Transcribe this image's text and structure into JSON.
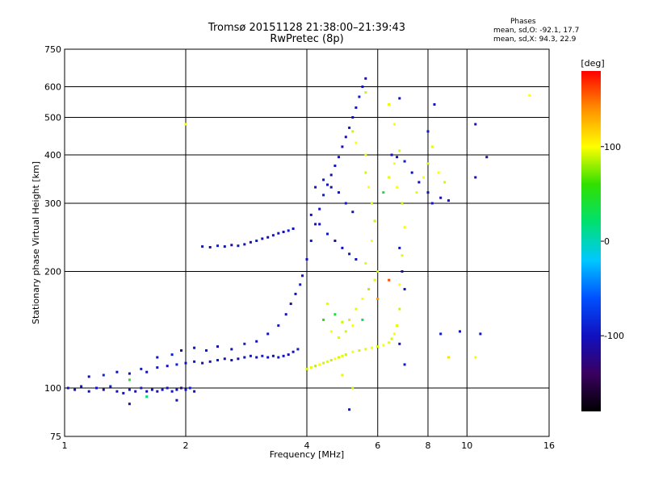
{
  "header": {
    "title": "Tromsø 20151128 21:38:00–21:39:43",
    "subtitle": "RwPretec (8p)"
  },
  "phases": {
    "heading": "Phases",
    "o_line": "mean, sd,O: -92.1, 17.7",
    "x_line": "mean, sd,X:  94.3, 22.9"
  },
  "chart_data": {
    "type": "scatter",
    "title": "Tromsø 20151128 21:38:00–21:39:43",
    "subtitle": "RwPretec (8p)",
    "xlabel": "Frequency [MHz]",
    "ylabel": "Stationary phase Virtual Height [km]",
    "xscale": "log",
    "yscale": "log",
    "xlim": [
      1,
      16
    ],
    "ylim": [
      75,
      750
    ],
    "xticks": [
      1,
      2,
      4,
      6,
      8,
      10,
      16
    ],
    "xtick_labels": [
      "1",
      "2",
      "4",
      "6",
      "8",
      "10",
      "16"
    ],
    "yticks": [
      75,
      100,
      200,
      300,
      400,
      500,
      600,
      750
    ],
    "ytick_labels": [
      "75",
      "100",
      "200",
      "300",
      "400",
      "500",
      "600",
      "750"
    ],
    "grid": true,
    "colorbar": {
      "label": "[deg]",
      "range": [
        -180,
        180
      ],
      "ticks": [
        -100,
        0,
        100
      ],
      "tick_labels": [
        "-100",
        "0",
        "100"
      ],
      "colors": [
        "#000000",
        "#3a0060",
        "#1010c0",
        "#0050ff",
        "#00c8ff",
        "#00e070",
        "#30e000",
        "#ffff00",
        "#ff9000",
        "#ff0000"
      ]
    },
    "series": [
      {
        "mode": "O",
        "points": [
          [
            1.02,
            100,
            -100
          ],
          [
            1.06,
            99,
            -110
          ],
          [
            1.1,
            101,
            -95
          ],
          [
            1.15,
            98,
            -105
          ],
          [
            1.2,
            100,
            -100
          ],
          [
            1.25,
            99,
            -115
          ],
          [
            1.3,
            101,
            -90
          ],
          [
            1.35,
            98,
            -100
          ],
          [
            1.4,
            97,
            -108
          ],
          [
            1.45,
            99,
            -97
          ],
          [
            1.5,
            98,
            -110
          ],
          [
            1.55,
            100,
            -92
          ],
          [
            1.6,
            98,
            -104
          ],
          [
            1.65,
            99,
            -100
          ],
          [
            1.7,
            98,
            -112
          ],
          [
            1.75,
            99,
            -98
          ],
          [
            1.8,
            100,
            -106
          ],
          [
            1.85,
            98,
            -95
          ],
          [
            1.9,
            99,
            -102
          ],
          [
            1.95,
            100,
            -118
          ],
          [
            2.0,
            99,
            -100
          ],
          [
            2.05,
            100,
            -90
          ],
          [
            2.1,
            98,
            -105
          ],
          [
            1.15,
            107,
            -100
          ],
          [
            1.25,
            108,
            -85
          ],
          [
            1.35,
            110,
            -100
          ],
          [
            1.45,
            109,
            -110
          ],
          [
            1.55,
            112,
            -90
          ],
          [
            1.6,
            110,
            -100
          ],
          [
            1.7,
            113,
            -95
          ],
          [
            1.8,
            114,
            -105
          ],
          [
            1.9,
            115,
            -88
          ],
          [
            2.0,
            116,
            -100
          ],
          [
            2.1,
            117,
            -95
          ],
          [
            2.2,
            116,
            -110
          ],
          [
            2.3,
            117,
            -100
          ],
          [
            2.4,
            118,
            -92
          ],
          [
            2.5,
            119,
            -104
          ],
          [
            2.6,
            118,
            -98
          ],
          [
            2.7,
            119,
            -112
          ],
          [
            2.8,
            120,
            -100
          ],
          [
            2.9,
            121,
            -96
          ],
          [
            3.0,
            120,
            -105
          ],
          [
            3.1,
            121,
            -90
          ],
          [
            3.2,
            120,
            -100
          ],
          [
            3.3,
            121,
            -108
          ],
          [
            3.4,
            120,
            -95
          ],
          [
            3.5,
            121,
            -100
          ],
          [
            3.6,
            122,
            -110
          ],
          [
            3.7,
            124,
            -100
          ],
          [
            3.8,
            126,
            -94
          ],
          [
            1.7,
            120,
            -100
          ],
          [
            1.85,
            122,
            -90
          ],
          [
            1.95,
            125,
            -105
          ],
          [
            2.1,
            127,
            -100
          ],
          [
            2.25,
            125,
            -95
          ],
          [
            2.4,
            128,
            -110
          ],
          [
            2.6,
            126,
            -100
          ],
          [
            2.8,
            130,
            -88
          ],
          [
            3.0,
            132,
            -100
          ],
          [
            3.2,
            138,
            -105
          ],
          [
            3.4,
            145,
            -95
          ],
          [
            3.55,
            155,
            -100
          ],
          [
            3.65,
            165,
            -110
          ],
          [
            3.75,
            175,
            -100
          ],
          [
            3.85,
            185,
            -92
          ],
          [
            3.9,
            195,
            -100
          ],
          [
            2.2,
            232,
            -98
          ],
          [
            2.3,
            231,
            -105
          ],
          [
            2.4,
            233,
            -92
          ],
          [
            2.5,
            232,
            -100
          ],
          [
            2.6,
            234,
            -110
          ],
          [
            2.7,
            233,
            -95
          ],
          [
            2.8,
            235,
            -100
          ],
          [
            2.9,
            238,
            -105
          ],
          [
            3.0,
            240,
            -90
          ],
          [
            3.1,
            243,
            -100
          ],
          [
            3.2,
            245,
            -110
          ],
          [
            3.3,
            248,
            -95
          ],
          [
            3.4,
            251,
            -100
          ],
          [
            3.5,
            253,
            -105
          ],
          [
            3.6,
            255,
            -92
          ],
          [
            3.7,
            258,
            -100
          ],
          [
            4.0,
            215,
            -100
          ],
          [
            4.1,
            240,
            -95
          ],
          [
            4.2,
            265,
            -110
          ],
          [
            4.3,
            290,
            -100
          ],
          [
            4.4,
            315,
            -90
          ],
          [
            4.5,
            335,
            -100
          ],
          [
            4.6,
            355,
            -105
          ],
          [
            4.7,
            375,
            -95
          ],
          [
            4.8,
            395,
            -100
          ],
          [
            4.9,
            420,
            -110
          ],
          [
            5.0,
            445,
            -100
          ],
          [
            5.1,
            470,
            -95
          ],
          [
            5.2,
            500,
            -105
          ],
          [
            5.3,
            530,
            -100
          ],
          [
            5.4,
            565,
            -92
          ],
          [
            5.5,
            600,
            -100
          ],
          [
            5.6,
            630,
            -110
          ],
          [
            4.2,
            330,
            -100
          ],
          [
            4.4,
            345,
            -95
          ],
          [
            4.6,
            330,
            -110
          ],
          [
            4.8,
            320,
            -100
          ],
          [
            5.0,
            300,
            -90
          ],
          [
            5.2,
            285,
            -100
          ],
          [
            4.1,
            280,
            -105
          ],
          [
            4.3,
            265,
            -100
          ],
          [
            4.5,
            250,
            -95
          ],
          [
            4.7,
            240,
            -110
          ],
          [
            4.9,
            230,
            -100
          ],
          [
            5.1,
            222,
            -95
          ],
          [
            5.3,
            215,
            -100
          ],
          [
            6.5,
            400,
            -100
          ],
          [
            6.7,
            395,
            -110
          ],
          [
            7.0,
            385,
            -95
          ],
          [
            7.3,
            360,
            -100
          ],
          [
            7.6,
            340,
            -105
          ],
          [
            8.0,
            320,
            -100
          ],
          [
            8.2,
            300,
            -95
          ],
          [
            8.6,
            310,
            -110
          ],
          [
            9.0,
            305,
            -100
          ],
          [
            6.8,
            230,
            -100
          ],
          [
            6.9,
            200,
            -105
          ],
          [
            7.0,
            180,
            -95
          ],
          [
            10.5,
            480,
            -100
          ],
          [
            10.5,
            350,
            -110
          ],
          [
            10.8,
            138,
            -100
          ],
          [
            8.6,
            138,
            -95
          ],
          [
            5.1,
            88,
            -100
          ],
          [
            1.9,
            93,
            -100
          ],
          [
            1.45,
            91,
            -105
          ],
          [
            6.8,
            130,
            -100
          ],
          [
            7.0,
            115,
            -95
          ],
          [
            6.8,
            560,
            -100
          ],
          [
            11.2,
            395,
            -110
          ],
          [
            9.6,
            140,
            -100
          ],
          [
            8.0,
            460,
            -95
          ],
          [
            8.3,
            540,
            -100
          ]
        ]
      },
      {
        "mode": "X",
        "points": [
          [
            4.0,
            112,
            90
          ],
          [
            4.1,
            113,
            95
          ],
          [
            4.2,
            114,
            85
          ],
          [
            4.3,
            115,
            100
          ],
          [
            4.4,
            116,
            90
          ],
          [
            4.5,
            117,
            95
          ],
          [
            4.6,
            118,
            88
          ],
          [
            4.7,
            119,
            100
          ],
          [
            4.8,
            120,
            92
          ],
          [
            4.9,
            121,
            96
          ],
          [
            5.0,
            122,
            90
          ],
          [
            5.2,
            124,
            100
          ],
          [
            5.4,
            125,
            92
          ],
          [
            5.6,
            126,
            95
          ],
          [
            5.8,
            127,
            98
          ],
          [
            6.0,
            128,
            90
          ],
          [
            6.2,
            129,
            100
          ],
          [
            6.4,
            131,
            95
          ],
          [
            6.5,
            134,
            92
          ],
          [
            6.6,
            138,
            100
          ],
          [
            6.7,
            145,
            95
          ],
          [
            6.8,
            160,
            90
          ],
          [
            6.8,
            185,
            100
          ],
          [
            6.9,
            220,
            95
          ],
          [
            7.0,
            260,
            98
          ],
          [
            6.9,
            300,
            90
          ],
          [
            6.7,
            330,
            100
          ],
          [
            4.5,
            165,
            95
          ],
          [
            4.7,
            155,
            40
          ],
          [
            4.9,
            148,
            90
          ],
          [
            5.1,
            150,
            110
          ],
          [
            5.3,
            160,
            95
          ],
          [
            5.5,
            170,
            100
          ],
          [
            5.7,
            180,
            85
          ],
          [
            5.9,
            190,
            95
          ],
          [
            6.0,
            200,
            90
          ],
          [
            4.4,
            150,
            60
          ],
          [
            4.6,
            140,
            100
          ],
          [
            4.8,
            135,
            95
          ],
          [
            5.0,
            140,
            92
          ],
          [
            5.2,
            145,
            100
          ],
          [
            5.6,
            210,
            95
          ],
          [
            5.8,
            240,
            100
          ],
          [
            5.9,
            270,
            90
          ],
          [
            5.8,
            300,
            95
          ],
          [
            5.7,
            330,
            100
          ],
          [
            5.6,
            360,
            92
          ],
          [
            5.6,
            400,
            96
          ],
          [
            5.3,
            430,
            100
          ],
          [
            5.2,
            460,
            90
          ],
          [
            6.2,
            320,
            40
          ],
          [
            6.4,
            350,
            95
          ],
          [
            6.6,
            380,
            100
          ],
          [
            6.8,
            410,
            92
          ],
          [
            7.5,
            320,
            96
          ],
          [
            7.8,
            350,
            100
          ],
          [
            8.0,
            380,
            90
          ],
          [
            8.2,
            420,
            95
          ],
          [
            8.5,
            360,
            100
          ],
          [
            8.8,
            340,
            92
          ],
          [
            6.6,
            480,
            100
          ],
          [
            6.4,
            540,
            95
          ],
          [
            5.6,
            580,
            90
          ],
          [
            14.3,
            570,
            100
          ],
          [
            10.5,
            120,
            98
          ],
          [
            9.0,
            120,
            110
          ],
          [
            5.2,
            100,
            92
          ],
          [
            4.9,
            108,
            95
          ],
          [
            2.0,
            480,
            100
          ],
          [
            1.45,
            105,
            50
          ],
          [
            1.6,
            95,
            20
          ],
          [
            6.0,
            170,
            140
          ],
          [
            6.4,
            190,
            160
          ],
          [
            5.5,
            150,
            30
          ]
        ]
      }
    ]
  }
}
